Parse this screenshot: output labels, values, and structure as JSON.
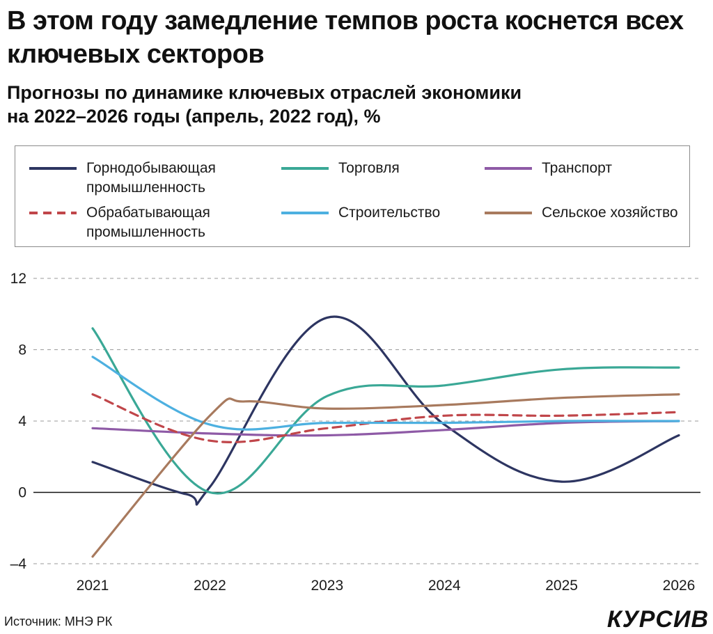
{
  "header": {
    "title": "В этом году замедление темпов роста коснется всех ключевых секторов",
    "subtitle_line1": "Прогнозы по динамике ключевых отраслей экономики",
    "subtitle_line2": "на 2022–2026 годы (апрель, 2022 год), %"
  },
  "footer": {
    "source": "Источник: МНЭ РК",
    "logo": "КУРСИВ"
  },
  "chart_data": {
    "type": "line",
    "x": [
      2021,
      2022,
      2023,
      2024,
      2025,
      2026
    ],
    "ylim": [
      -4,
      12
    ],
    "yticks": [
      -4,
      0,
      4,
      8,
      12
    ],
    "ytick_labels": [
      "–4",
      "0",
      "4",
      "8",
      "12"
    ],
    "grid": "horizontal dashed",
    "legend_position": "top",
    "series": [
      {
        "name": "Горнодобывающая промышленность",
        "line1": "Горнодобывающая",
        "line2": "промышленность",
        "color": "#2d3561",
        "dash": "solid",
        "x": [
          2021,
          2021.8,
          2022,
          2023,
          2024,
          2025,
          2026
        ],
        "values": [
          1.7,
          -0.1,
          0.3,
          9.8,
          3.8,
          0.6,
          3.2
        ]
      },
      {
        "name": "Торговля",
        "line1": "Торговля",
        "line2": "",
        "color": "#3aa896",
        "dash": "solid",
        "x": [
          2021,
          2022,
          2023,
          2024,
          2025,
          2026
        ],
        "values": [
          9.2,
          0.0,
          5.4,
          6.0,
          6.9,
          7.0
        ]
      },
      {
        "name": "Транспорт",
        "line1": "Транспорт",
        "line2": "",
        "color": "#8e5aa6",
        "dash": "solid",
        "x": [
          2021,
          2022,
          2023,
          2024,
          2025,
          2026
        ],
        "values": [
          3.6,
          3.3,
          3.2,
          3.5,
          3.9,
          4.0
        ]
      },
      {
        "name": "Обрабатывающая промышленность",
        "line1": "Обрабатывающая",
        "line2": "промышленность",
        "color": "#c0464a",
        "dash": "dashed",
        "x": [
          2021,
          2022,
          2023,
          2024,
          2025,
          2026
        ],
        "values": [
          5.5,
          2.9,
          3.6,
          4.3,
          4.3,
          4.5
        ]
      },
      {
        "name": "Строительство",
        "line1": "Строительство",
        "line2": "",
        "color": "#4db0e0",
        "dash": "solid",
        "x": [
          2021,
          2022,
          2023,
          2024,
          2025,
          2026
        ],
        "values": [
          7.6,
          3.8,
          3.9,
          3.9,
          4.0,
          4.0
        ]
      },
      {
        "name": "Сельское хозяйство",
        "line1": "Сельское хозяйство",
        "line2": "",
        "color": "#a87a5e",
        "dash": "solid",
        "x": [
          2021,
          2022,
          2022.3,
          2023,
          2024,
          2025,
          2026
        ],
        "values": [
          -3.6,
          4.3,
          5.1,
          4.7,
          4.9,
          5.3,
          5.5
        ]
      }
    ]
  }
}
